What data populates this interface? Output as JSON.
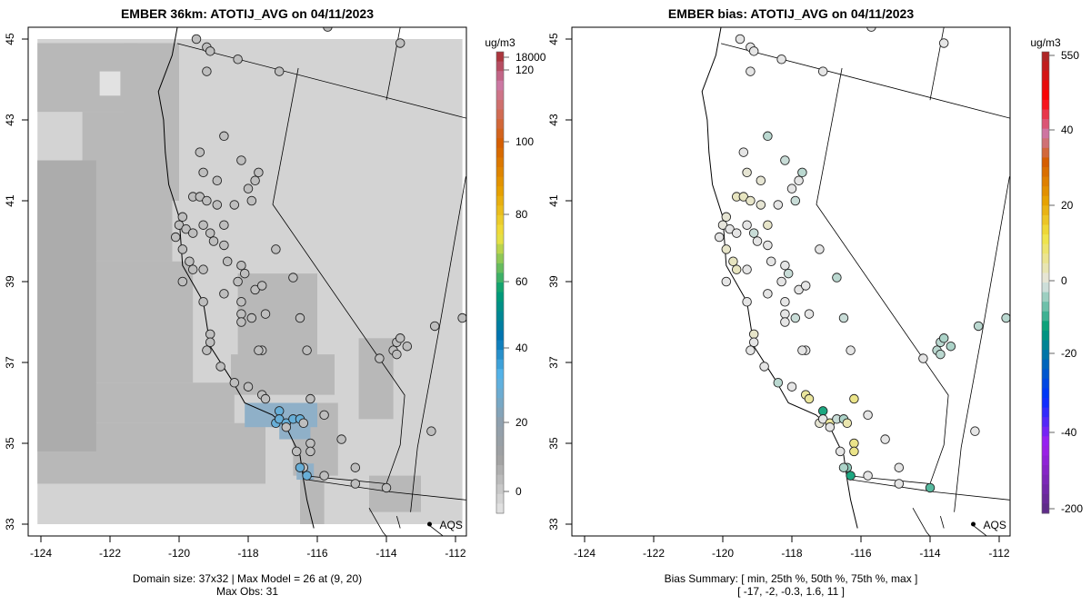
{
  "chart_data": [
    {
      "type": "map",
      "title": "EMBER 36km: ATOTIJ_AVG on 04/11/2023",
      "unit": "ug/m3",
      "colorbar_ticks": [
        "18000",
        "120",
        "100",
        "80",
        "60",
        "40",
        "20",
        "0"
      ],
      "xticks": [
        "-124",
        "-122",
        "-120",
        "-118",
        "-116",
        "-114",
        "-112"
      ],
      "yticks": [
        "45",
        "43",
        "41",
        "39",
        "37",
        "35",
        "33"
      ],
      "footer": [
        "Domain size: 37x32 | Max Model = 26 at (9, 20)",
        "Max Obs: 31"
      ],
      "marker_label": "AQS"
    },
    {
      "type": "map",
      "title": "EMBER bias: ATOTIJ_AVG on 04/11/2023",
      "unit": "ug/m3",
      "colorbar_ticks": [
        "550",
        "40",
        "20",
        "0",
        "-20",
        "-40",
        "-200"
      ],
      "xticks": [
        "-124",
        "-122",
        "-120",
        "-118",
        "-116",
        "-114",
        "-112"
      ],
      "yticks": [
        "45",
        "43",
        "41",
        "39",
        "37",
        "35",
        "33"
      ],
      "footer": [
        "Bias Summary: [ min, 25th %, 50th %, 75th %, max ]",
        "[ -17,  -2,  -0.3,  1.6,  11 ]"
      ],
      "marker_label": "AQS"
    }
  ],
  "sites": [
    [
      -119.5,
      45.0,
      4,
      0
    ],
    [
      -119.2,
      44.8,
      4,
      0
    ],
    [
      -119.1,
      44.7,
      4,
      0
    ],
    [
      -119.2,
      44.2,
      4,
      0
    ],
    [
      -118.3,
      44.5,
      4,
      0
    ],
    [
      -117.1,
      44.2,
      4,
      0
    ],
    [
      -115.7,
      45.3,
      4,
      0
    ],
    [
      -113.6,
      44.9,
      4,
      0
    ],
    [
      -118.7,
      42.6,
      4,
      -3
    ],
    [
      -119.4,
      42.2,
      4,
      0
    ],
    [
      -119.3,
      41.7,
      4,
      2
    ],
    [
      -118.9,
      41.5,
      4,
      2
    ],
    [
      -118.2,
      42.0,
      4,
      -2
    ],
    [
      -117.7,
      41.7,
      4,
      -3
    ],
    [
      -117.8,
      41.5,
      4,
      0
    ],
    [
      -118.0,
      41.3,
      4,
      0
    ],
    [
      -117.9,
      41.0,
      4,
      -2
    ],
    [
      -119.6,
      41.1,
      4,
      4
    ],
    [
      -119.4,
      41.1,
      4,
      4
    ],
    [
      -119.2,
      41.0,
      4,
      3
    ],
    [
      -118.9,
      40.9,
      4,
      2
    ],
    [
      -118.4,
      40.9,
      4,
      0
    ],
    [
      -119.3,
      40.4,
      4,
      0
    ],
    [
      -118.7,
      40.4,
      4,
      3
    ],
    [
      -119.9,
      40.6,
      4,
      2
    ],
    [
      -120.0,
      40.4,
      4,
      1
    ],
    [
      -119.8,
      40.3,
      4,
      0
    ],
    [
      -119.6,
      40.2,
      4,
      0
    ],
    [
      -120.1,
      40.1,
      4,
      0
    ],
    [
      -119.9,
      39.8,
      4,
      3
    ],
    [
      -119.7,
      39.5,
      4,
      4
    ],
    [
      -119.6,
      39.3,
      4,
      4
    ],
    [
      -119.9,
      39.0,
      4,
      0
    ],
    [
      -119.1,
      40.2,
      4,
      -2
    ],
    [
      -119.0,
      40.0,
      4,
      0
    ],
    [
      -118.7,
      39.9,
      4,
      0
    ],
    [
      -118.6,
      39.5,
      4,
      0
    ],
    [
      -118.2,
      39.4,
      4,
      0
    ],
    [
      -119.3,
      39.3,
      4,
      0
    ],
    [
      -118.1,
      39.2,
      4,
      -2
    ],
    [
      -117.2,
      39.8,
      4,
      0
    ],
    [
      -118.3,
      39.0,
      4,
      0
    ],
    [
      -118.7,
      38.7,
      4,
      0
    ],
    [
      -118.2,
      38.5,
      4,
      0
    ],
    [
      -117.8,
      38.8,
      4,
      0
    ],
    [
      -117.6,
      38.9,
      4,
      0
    ],
    [
      -116.7,
      39.1,
      4,
      -3
    ],
    [
      -119.3,
      38.5,
      4,
      0
    ],
    [
      -118.2,
      38.2,
      4,
      0
    ],
    [
      -118.2,
      38.0,
      4,
      0
    ],
    [
      -117.9,
      38.1,
      4,
      -2
    ],
    [
      -117.5,
      38.2,
      4,
      0
    ],
    [
      -116.5,
      38.1,
      4,
      -2
    ],
    [
      -119.1,
      37.7,
      4,
      3
    ],
    [
      -119.1,
      37.5,
      4,
      0
    ],
    [
      -119.2,
      37.3,
      4,
      0
    ],
    [
      -117.6,
      37.3,
      4,
      0
    ],
    [
      -117.7,
      37.3,
      4,
      0
    ],
    [
      -116.3,
      37.3,
      4,
      0
    ],
    [
      -118.8,
      36.9,
      4,
      0
    ],
    [
      -118.4,
      36.5,
      4,
      -3
    ],
    [
      -118.0,
      36.4,
      4,
      0
    ],
    [
      -117.6,
      36.2,
      4,
      8
    ],
    [
      -117.5,
      36.1,
      4,
      8
    ],
    [
      -117.1,
      35.8,
      30,
      -14
    ],
    [
      -117.2,
      35.5,
      30,
      2
    ],
    [
      -117.1,
      35.6,
      30,
      0
    ],
    [
      -116.9,
      35.5,
      30,
      8
    ],
    [
      -116.7,
      35.6,
      30,
      -2
    ],
    [
      -116.5,
      35.6,
      30,
      -4
    ],
    [
      -116.4,
      35.5,
      4,
      6
    ],
    [
      -116.9,
      35.4,
      4,
      0
    ],
    [
      -116.2,
      36.1,
      4,
      10
    ],
    [
      -115.8,
      35.7,
      4,
      0
    ],
    [
      -115.3,
      35.1,
      4,
      0
    ],
    [
      -116.2,
      35.0,
      4,
      10
    ],
    [
      -116.2,
      34.8,
      4,
      10
    ],
    [
      -116.6,
      34.8,
      4,
      0
    ],
    [
      -116.4,
      34.4,
      4,
      -6
    ],
    [
      -116.5,
      34.4,
      30,
      -4
    ],
    [
      -116.3,
      34.2,
      30,
      -14
    ],
    [
      -115.8,
      34.2,
      4,
      0
    ],
    [
      -114.9,
      34.4,
      4,
      0
    ],
    [
      -114.9,
      34.0,
      4,
      0
    ],
    [
      -114.0,
      33.9,
      4,
      -10
    ],
    [
      -113.8,
      37.3,
      4,
      -3
    ],
    [
      -113.7,
      37.5,
      4,
      -3
    ],
    [
      -113.6,
      37.6,
      4,
      -4
    ],
    [
      -113.7,
      37.2,
      4,
      -3
    ],
    [
      -113.4,
      37.4,
      4,
      -4
    ],
    [
      -114.2,
      37.1,
      4,
      0
    ],
    [
      -112.6,
      37.9,
      4,
      -3
    ],
    [
      -111.8,
      38.1,
      4,
      -3
    ],
    [
      -112.7,
      35.3,
      4,
      0
    ]
  ]
}
